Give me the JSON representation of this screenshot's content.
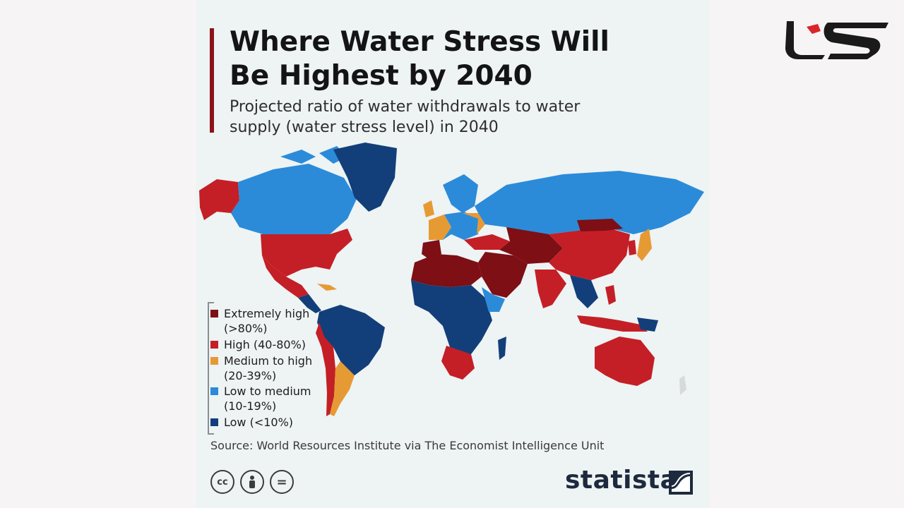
{
  "header": {
    "title": "Where Water Stress Will Be Highest by 2040",
    "subtitle": "Projected ratio of water withdrawals to water supply (water stress level) in 2040"
  },
  "legend": [
    {
      "label": "Extremely high\n(>80%)",
      "color": "#7d0f15"
    },
    {
      "label": "High (40-80%)",
      "color": "#c41f26"
    },
    {
      "label": "Medium to high\n(20-39%)",
      "color": "#e69a34"
    },
    {
      "label": "Low to medium\n(10-19%)",
      "color": "#2b8bd9"
    },
    {
      "label": "Low (<10%)",
      "color": "#123f7a"
    }
  ],
  "source": "Source: World Resources Institute via The Economist Intelligence Unit",
  "license_icons": [
    {
      "name": "cc-icon",
      "text": "cc"
    },
    {
      "name": "attribution-icon",
      "text": ""
    },
    {
      "name": "no-derivatives-icon",
      "text": "="
    }
  ],
  "brand": "statista",
  "colors": {
    "extremely_high": "#7d0f15",
    "high": "#c41f26",
    "medium_high": "#e69a34",
    "low_medium": "#2b8bd9",
    "low": "#123f7a",
    "title_bar": "#8b1418",
    "background": "#eef3f4"
  }
}
